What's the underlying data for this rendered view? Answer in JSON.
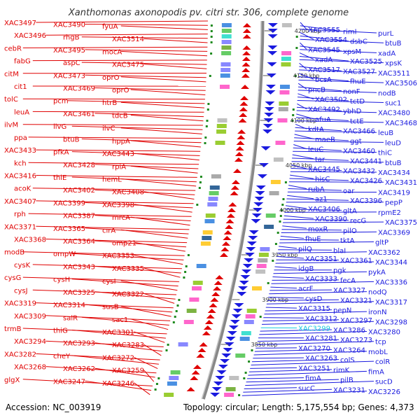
{
  "title": "Xanthomonas axonopodis pv. citri str. 306, complete genome",
  "accession": "Accession: NC_003919",
  "topology": "Topology: circular; Length: 5,175,554 bp; Genes: 4,373",
  "colors": {
    "reverse_strand": "#e00000",
    "forward_strand": "#1a1adf",
    "highlight": "#19c8e0",
    "backbone": "#888888",
    "tick": "#1e8a1e"
  },
  "kbp_ticks": [
    "4200 kbp",
    "4150 kbp",
    "4100 kbp",
    "4050 kbp",
    "4000 kbp",
    "3950 kbp",
    "3900 kbp",
    "3850 kbp"
  ],
  "left_labels": [
    "XAC3497",
    "XAC3490",
    "fyuA",
    "XAC3496",
    "rhgB",
    "XAC3514",
    "cebR",
    "XAC3495",
    "mocA",
    "fabG",
    "aspC",
    "XAC3475",
    "citM",
    "XAC3473",
    "oprO",
    "cit1",
    "XAC3469",
    "oprO",
    "tolC",
    "pcm",
    "htrB",
    "leuA",
    "XAC3461",
    "tdcB",
    "ilvM",
    "ilvG",
    "ilvC",
    "ppa",
    "btuB",
    "hppA",
    "XAC3433",
    "pfkA",
    "XAC3443",
    "kch",
    "XAC3428",
    "rpiA",
    "XAC3416",
    "thiE",
    "hemL",
    "acoK",
    "XAC3402",
    "XAC3408",
    "XAC3407",
    "XAC3399",
    "XAC3398",
    "rph",
    "XAC3387",
    "mrcA",
    "XAC3371",
    "XAC3365",
    "cirA",
    "XAC3368",
    "XAC3364",
    "omp21",
    "modB",
    "ompW",
    "XAC3353",
    "cysK",
    "XAC3343",
    "XAC3335",
    "cysG",
    "cysH",
    "cysI",
    "cysJ",
    "XAC3325",
    "XAC3322",
    "XAC3319",
    "XAC3314",
    "susB",
    "XAC3309",
    "salR",
    "sac1",
    "trmB",
    "thiG",
    "XAC3301",
    "XAC3294",
    "XAC3293",
    "XAC3283",
    "XAC3282",
    "cheY",
    "XAC3272",
    "XAC3268",
    "XAC3262",
    "XAC3259",
    "glgX",
    "XAC3247",
    "XAC3246"
  ],
  "right_labels": [
    "XAC3555",
    "rimI",
    "purL",
    "XAC3554",
    "dsbC",
    "btuB",
    "XAC3545",
    "xpsM",
    "xadA",
    "xadA",
    "XAC3525",
    "xpsK",
    "XAC3517",
    "XAC3527",
    "XAC3511",
    "bcsA",
    "fhuE",
    "XAC3506",
    "pncB",
    "nonF",
    "nodB",
    "XAC3502",
    "tctD",
    "suc1",
    "XAC3492",
    "ybhD",
    "XAC3480",
    "afuA",
    "tctE",
    "XAC3468",
    "kdtA",
    "XAC3466",
    "leuB",
    "maeB",
    "ggt",
    "leuD",
    "leuC",
    "XAC3460",
    "thiC",
    "tar",
    "XAC3441",
    "btuB",
    "XAC3445",
    "XAC3432",
    "XAC3434",
    "hisC",
    "XAC3426",
    "XAC3431",
    "rubA",
    "oar",
    "XAC3419",
    "az1",
    "XAC3396",
    "pepP",
    "XAC3406",
    "gltA",
    "rpmE2",
    "XAC3390",
    "recG",
    "XAC3375",
    "moxR",
    "pilO",
    "XAC3369",
    "fhuE",
    "tktA",
    "gltP",
    "pilQ",
    "blaI",
    "XAC3362",
    "XAC3351",
    "XAC3361",
    "XAC3344",
    "idgB",
    "pgk",
    "pykA",
    "XAC3333",
    "fecA",
    "XAC3336",
    "acrF",
    "XAC3327",
    "nodQ",
    "cysD",
    "XAC3321",
    "XAC3317",
    "XAC3315",
    "pepN",
    "ironN",
    "XAC3312",
    "XAC3297",
    "XAC3298",
    "XAC3299",
    "XAC3286",
    "XAC3280",
    "XAC3281",
    "XAC3273",
    "tcp",
    "XAC3270",
    "XAC3264",
    "mobL",
    "XAC3263",
    "colS",
    "colR",
    "XAC3251",
    "rimK",
    "fimA",
    "fimA",
    "pilB",
    "sucD",
    "sucC",
    "XAC3231",
    "XAC3226"
  ]
}
